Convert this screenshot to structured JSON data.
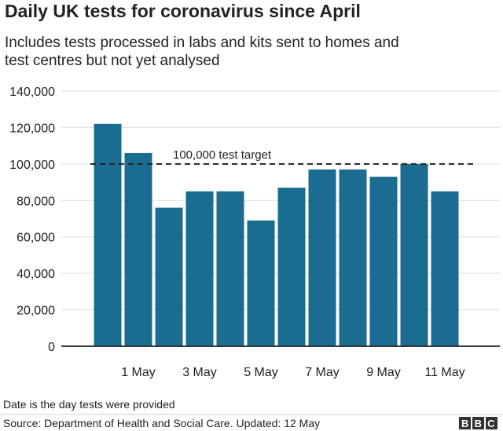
{
  "chart_data": {
    "type": "bar",
    "title": "Daily UK tests for coronavirus since April",
    "subtitle": [
      "Includes tests processed in labs and kits sent to homes and",
      "test centres but not yet analysed"
    ],
    "categories": [
      null,
      "1 May",
      null,
      "3 May",
      null,
      "5 May",
      null,
      "7 May",
      null,
      "9 May",
      null,
      "11 May"
    ],
    "values": [
      122000,
      106000,
      76000,
      85000,
      85000,
      69000,
      87000,
      97000,
      97000,
      93000,
      100000,
      85000
    ],
    "color": "#1a6d91",
    "ylim": [
      0,
      140000
    ],
    "yticks": [
      0,
      {
        "value": 20000,
        "label": "20,000"
      },
      {
        "value": 40000,
        "label": "40,000"
      },
      {
        "value": 60000,
        "label": "60,000"
      },
      {
        "value": 80000,
        "label": "80,000"
      },
      {
        "value": 100000,
        "label": "100,000"
      },
      {
        "value": 120000,
        "label": "120,000"
      },
      {
        "value": 140000,
        "label": "140,000"
      }
    ],
    "grid": true,
    "reference_line": {
      "value": 100000,
      "label": "100,000 test target"
    },
    "note": "Date is the day tests were provided",
    "source": "Source: Department of Health and Social Care. Updated: 12 May",
    "logo": "BBC"
  }
}
